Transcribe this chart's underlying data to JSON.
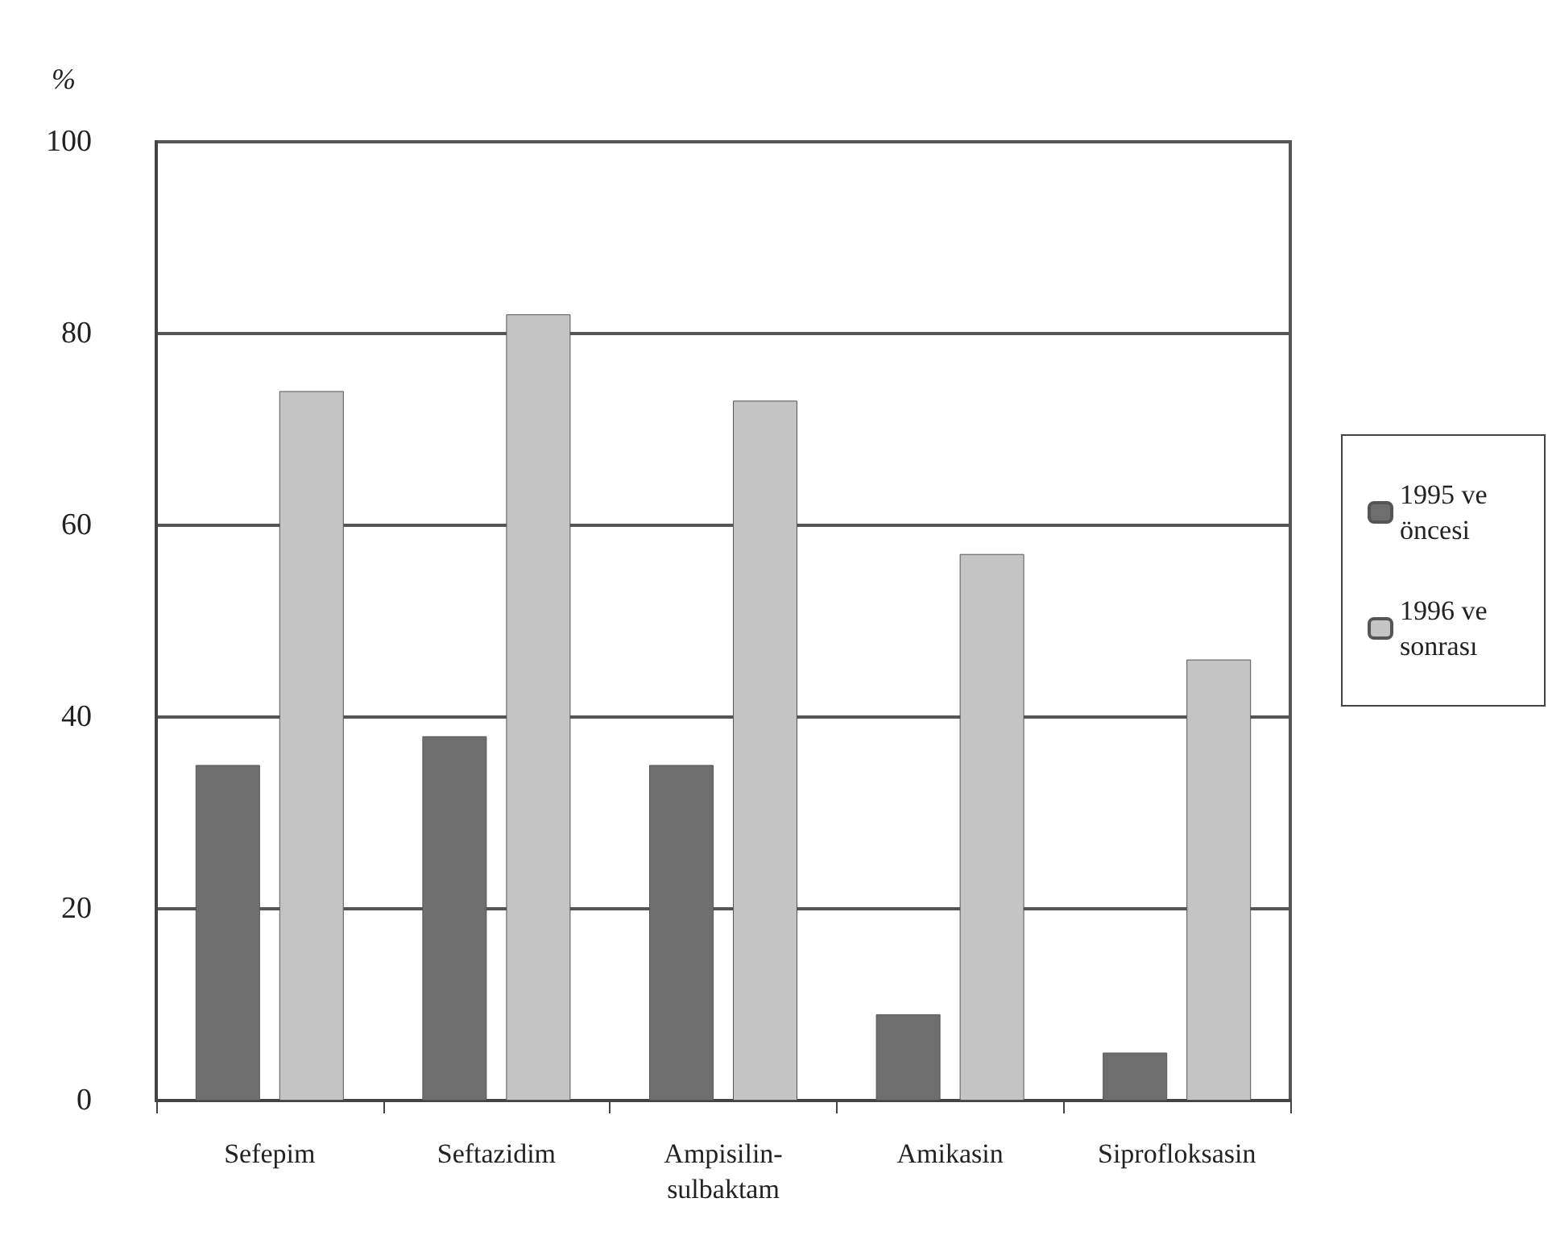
{
  "chart_data": {
    "type": "bar",
    "ylabel": "%",
    "categories": [
      "Sefepim",
      "Seftazidim",
      "Ampisilin-sulbaktam",
      "Amikasin",
      "Siprofloksasin"
    ],
    "series": [
      {
        "name": "1995 ve öncesi",
        "color": "#6e6e6e",
        "values": [
          35,
          38,
          35,
          9,
          5
        ]
      },
      {
        "name": "1996 ve sonrası",
        "color": "#c4c4c4",
        "values": [
          74,
          82,
          73,
          57,
          46
        ]
      }
    ],
    "ylim": [
      0,
      100
    ],
    "yticks": [
      0,
      20,
      40,
      60,
      80,
      100
    ],
    "grid": "y",
    "legend": "right"
  }
}
